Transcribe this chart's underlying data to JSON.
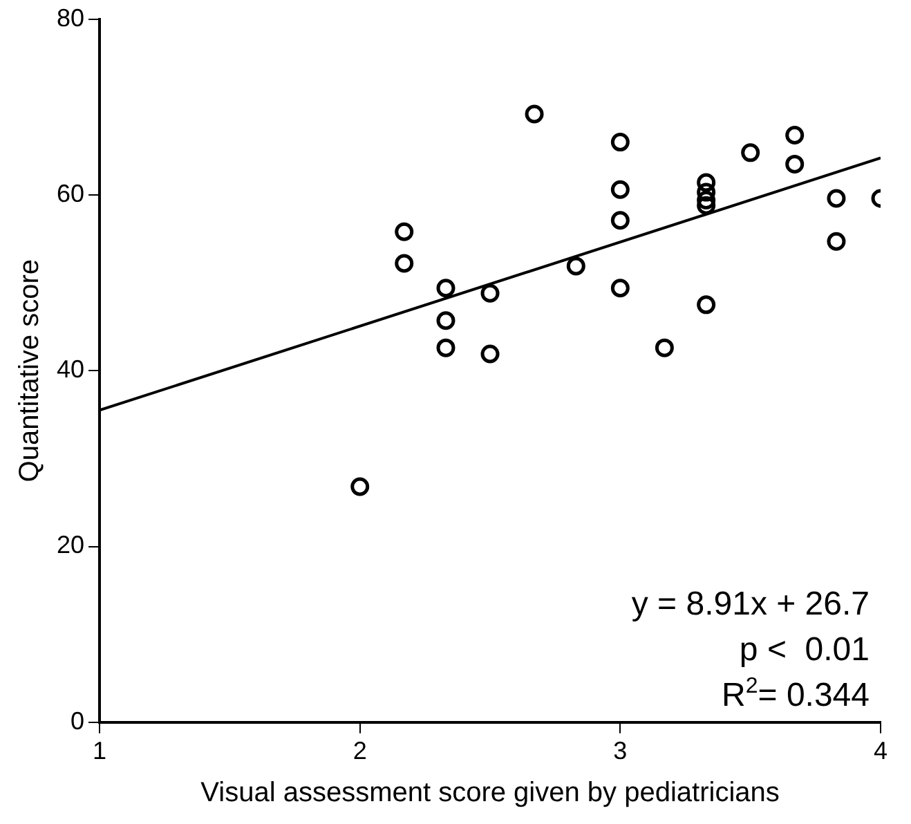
{
  "chart_data": {
    "type": "scatter",
    "xlabel": "Visual assessment score given by pediatricians",
    "ylabel": "Quantitative score",
    "xlim": [
      1,
      4
    ],
    "xticks": [
      1,
      2,
      3,
      4
    ],
    "ylim": [
      0,
      80
    ],
    "yticks": [
      0,
      20,
      40,
      60,
      80
    ],
    "grid": false,
    "legend": false,
    "marker": "circle",
    "series": [
      {
        "color": "#000000",
        "x": [
          2,
          2.17,
          2.17,
          2.33,
          2.33,
          2.33,
          2.5,
          2.5,
          2.67,
          2.83,
          3,
          3,
          3,
          3,
          3.17,
          3.33,
          3.33,
          3.33,
          3.33,
          3.33,
          3.5,
          3.67,
          3.67,
          3.83,
          3.83,
          4
        ],
        "values": [
          26.8,
          55.8,
          52.2,
          49.4,
          45.7,
          42.6,
          48.8,
          41.9,
          69.2,
          51.9,
          66.0,
          60.6,
          57.1,
          49.4,
          42.6,
          61.4,
          60.3,
          59.4,
          58.8,
          47.5,
          64.8,
          66.8,
          63.5,
          59.6,
          54.7,
          59.6
        ]
      },
      {
        "type": "line",
        "color": "#000000",
        "marker": "none",
        "x": [
          1,
          4
        ],
        "values": [
          35.5,
          64.2
        ]
      }
    ],
    "annotations": [
      "y = 8.91x + 26.7",
      "p <  0.01",
      "R$^{2}$= 0.344"
    ]
  }
}
